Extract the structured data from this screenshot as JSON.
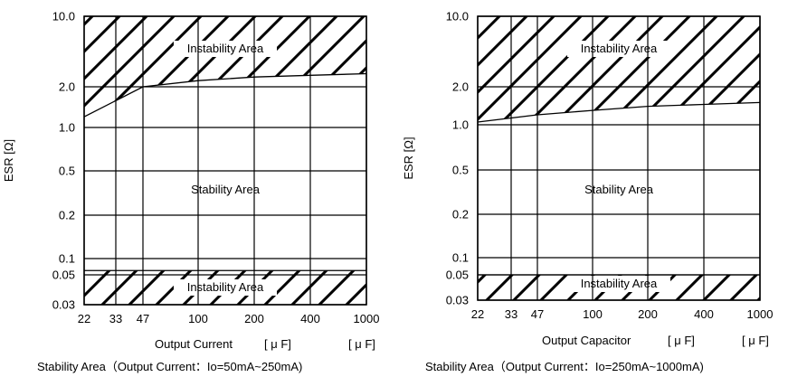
{
  "chart_data": [
    {
      "type": "area",
      "ylabel": "ESR [Ω]",
      "xlabel": "Output Current",
      "xlabel_unit": "[ μ F]",
      "xlabel_unit_right": "[ μ F]",
      "caption": "Stability Area（Output Current：Io=50mA~250mA)",
      "y_scale": "log",
      "x_scale": "log",
      "x_ticks": [
        22,
        33,
        47,
        100,
        200,
        400,
        1000
      ],
      "x_tick_labels": [
        "22",
        "33",
        "47",
        "100",
        "200",
        "400",
        "1000"
      ],
      "y_ticks": [
        0.03,
        0.05,
        0.1,
        0.2,
        0.5,
        1.0,
        2.0,
        10.0
      ],
      "y_tick_labels": [
        "0.03",
        "0.05",
        "0.1",
        "0.2",
        "0.5",
        "1.0",
        "2.0",
        "10.0"
      ],
      "xlim": [
        22,
        1000
      ],
      "ylim": [
        0.03,
        10.0
      ],
      "grid": true,
      "upper_boundary": {
        "x": [
          22,
          47,
          100,
          200,
          400,
          1000
        ],
        "esr": [
          1.2,
          2.0,
          2.3,
          2.5,
          2.6,
          2.7
        ]
      },
      "lower_boundary": {
        "x": [
          22,
          1000
        ],
        "esr": [
          0.06,
          0.06
        ]
      },
      "regions": [
        {
          "name": "Instability Area",
          "position": "upper"
        },
        {
          "name": "Stability Area",
          "position": "middle"
        },
        {
          "name": "Instability Area",
          "position": "lower"
        }
      ]
    },
    {
      "type": "area",
      "ylabel": "ESR [Ω]",
      "xlabel": "Output Capacitor",
      "xlabel_unit": "[ μ F]",
      "xlabel_unit_right": "[ μ F]",
      "caption": "Stability Area（Output Current：Io=250mA~1000mA)",
      "y_scale": "log",
      "x_scale": "log",
      "x_ticks": [
        22,
        33,
        47,
        100,
        200,
        400,
        1000
      ],
      "x_tick_labels": [
        "22",
        "33",
        "47",
        "100",
        "200",
        "400",
        "1000"
      ],
      "y_ticks": [
        0.03,
        0.05,
        0.1,
        0.2,
        0.5,
        1.0,
        2.0,
        10.0
      ],
      "y_tick_labels": [
        "0.03",
        "0.05",
        "0.1",
        "0.2",
        "0.5",
        "1.0",
        "2.0",
        "10.0"
      ],
      "xlim": [
        22,
        1000
      ],
      "ylim": [
        0.03,
        10.0
      ],
      "grid": true,
      "upper_boundary": {
        "x": [
          22,
          47,
          100,
          200,
          400,
          1000
        ],
        "esr": [
          1.05,
          1.2,
          1.3,
          1.4,
          1.45,
          1.5
        ]
      },
      "lower_boundary": {
        "x": [
          22,
          1000
        ],
        "esr": [
          0.05,
          0.05
        ]
      },
      "regions": [
        {
          "name": "Instability Area",
          "position": "upper"
        },
        {
          "name": "Stability Area",
          "position": "middle"
        },
        {
          "name": "Instability Area",
          "position": "lower"
        }
      ]
    }
  ]
}
